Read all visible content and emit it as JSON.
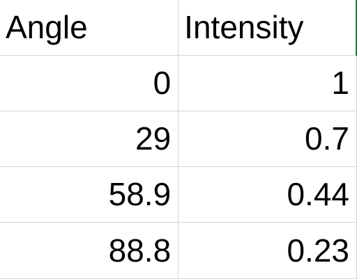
{
  "columns": {
    "a": "Angle",
    "b": "Intensity"
  },
  "rows": [
    {
      "angle": "0",
      "intensity": "1"
    },
    {
      "angle": "29",
      "intensity": "0.7"
    },
    {
      "angle": "58.9",
      "intensity": "0.44"
    },
    {
      "angle": "88.8",
      "intensity": "0.23"
    }
  ],
  "colors": {
    "gridline": "#d4d4d4",
    "accent": "#217346"
  }
}
